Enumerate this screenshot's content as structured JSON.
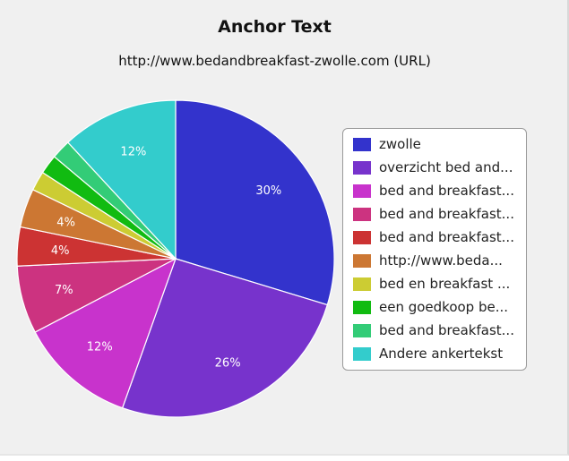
{
  "chart_data": {
    "type": "pie",
    "title": "Anchor Text",
    "subtitle": "http://www.bedandbreakfast-zwolle.com (URL)",
    "slices": [
      {
        "label": "zwolle",
        "value": 30,
        "color": "#3333cc",
        "data_label": "30%"
      },
      {
        "label": "overzicht bed and...",
        "value": 26,
        "color": "#7733cc",
        "data_label": "26%"
      },
      {
        "label": "bed and breakfast...",
        "value": 12,
        "color": "#c833cc",
        "data_label": "12%"
      },
      {
        "label": "bed and breakfast...",
        "value": 7,
        "color": "#cc3380",
        "data_label": "7%"
      },
      {
        "label": "bed and breakfast...",
        "value": 4,
        "color": "#cc3333",
        "data_label": "4%"
      },
      {
        "label": "http://www.beda...",
        "value": 4,
        "color": "#cc7733",
        "data_label": "4%"
      },
      {
        "label": "bed en breakfast ...",
        "value": 2,
        "color": "#cccc33",
        "data_label": ""
      },
      {
        "label": "een goedkoop be...",
        "value": 2,
        "color": "#11bb11",
        "data_label": ""
      },
      {
        "label": "bed and breakfast...",
        "value": 2,
        "color": "#33cc77",
        "data_label": ""
      },
      {
        "label": "Andere ankertekst",
        "value": 12,
        "color": "#33cccc",
        "data_label": "12%"
      }
    ],
    "legend_position": "right"
  }
}
